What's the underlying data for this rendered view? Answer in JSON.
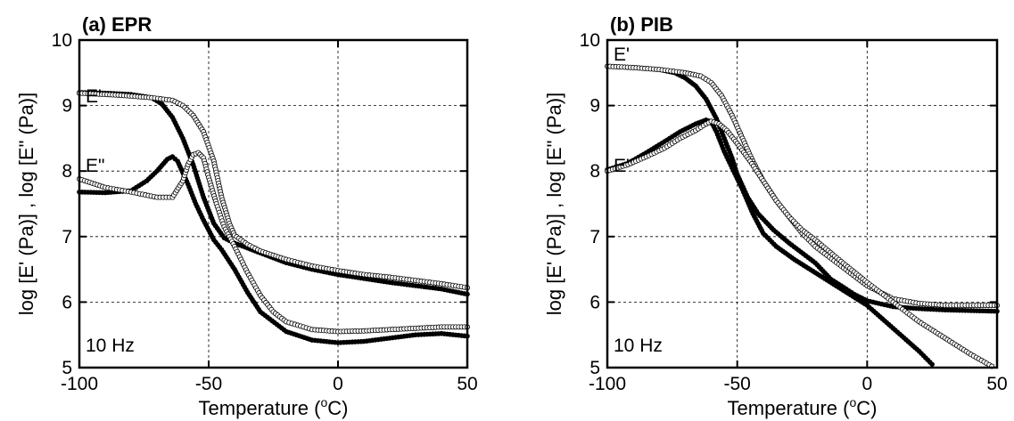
{
  "chart_data": [
    {
      "type": "scatter",
      "title": "(a) EPR",
      "xlabel": "Temperature (",
      "xlabel_degree": "o",
      "xlabel_unit": "C)",
      "ylabel": "log [E' (Pa)] , log [E\" (Pa)]",
      "xlim": [
        -100,
        50
      ],
      "ylim": [
        5,
        10
      ],
      "xticks": [
        -100,
        -50,
        0,
        50
      ],
      "yticks": [
        5,
        6,
        7,
        8,
        9,
        10
      ],
      "grid": "dashed",
      "annotations": [
        "E'",
        "E\"",
        "10 Hz"
      ],
      "series": [
        {
          "marker": "filled",
          "values": [
            [
              -100,
              9.2
            ],
            [
              -90,
              9.19
            ],
            [
              -80,
              9.17
            ],
            [
              -72,
              9.12
            ],
            [
              -68,
              9.02
            ],
            [
              -64,
              8.82
            ],
            [
              -60,
              8.5
            ],
            [
              -56,
              8.1
            ],
            [
              -52,
              7.6
            ],
            [
              -48,
              7.2
            ],
            [
              -44,
              6.98
            ],
            [
              -40,
              6.9
            ],
            [
              -30,
              6.75
            ],
            [
              -20,
              6.6
            ],
            [
              -10,
              6.5
            ],
            [
              0,
              6.42
            ],
            [
              10,
              6.36
            ],
            [
              20,
              6.3
            ],
            [
              30,
              6.25
            ],
            [
              40,
              6.2
            ],
            [
              50,
              6.12
            ]
          ]
        },
        {
          "marker": "open",
          "values": [
            [
              -100,
              9.19
            ],
            [
              -85,
              9.16
            ],
            [
              -72,
              9.12
            ],
            [
              -64,
              9.08
            ],
            [
              -60,
              9.0
            ],
            [
              -56,
              8.85
            ],
            [
              -52,
              8.6
            ],
            [
              -48,
              8.15
            ],
            [
              -45,
              7.6
            ],
            [
              -42,
              7.2
            ],
            [
              -40,
              7.02
            ],
            [
              -35,
              6.88
            ],
            [
              -30,
              6.78
            ],
            [
              -20,
              6.65
            ],
            [
              -10,
              6.55
            ],
            [
              0,
              6.48
            ],
            [
              10,
              6.42
            ],
            [
              20,
              6.38
            ],
            [
              30,
              6.33
            ],
            [
              40,
              6.28
            ],
            [
              50,
              6.22
            ]
          ]
        },
        {
          "marker": "filled",
          "values": [
            [
              -100,
              7.68
            ],
            [
              -90,
              7.67
            ],
            [
              -80,
              7.7
            ],
            [
              -74,
              7.85
            ],
            [
              -70,
              8.0
            ],
            [
              -66,
              8.18
            ],
            [
              -64,
              8.22
            ],
            [
              -62,
              8.15
            ],
            [
              -58,
              7.8
            ],
            [
              -55,
              7.5
            ],
            [
              -52,
              7.25
            ],
            [
              -48,
              6.95
            ],
            [
              -45,
              6.8
            ],
            [
              -40,
              6.5
            ],
            [
              -35,
              6.15
            ],
            [
              -30,
              5.85
            ],
            [
              -20,
              5.55
            ],
            [
              -10,
              5.42
            ],
            [
              0,
              5.38
            ],
            [
              10,
              5.4
            ],
            [
              20,
              5.45
            ],
            [
              30,
              5.5
            ],
            [
              40,
              5.52
            ],
            [
              50,
              5.48
            ]
          ]
        },
        {
          "marker": "open",
          "values": [
            [
              -100,
              7.88
            ],
            [
              -90,
              7.75
            ],
            [
              -80,
              7.68
            ],
            [
              -70,
              7.6
            ],
            [
              -64,
              7.6
            ],
            [
              -60,
              7.85
            ],
            [
              -58,
              8.1
            ],
            [
              -56,
              8.25
            ],
            [
              -54,
              8.28
            ],
            [
              -52,
              8.2
            ],
            [
              -50,
              7.9
            ],
            [
              -47,
              7.5
            ],
            [
              -44,
              7.15
            ],
            [
              -40,
              6.85
            ],
            [
              -35,
              6.45
            ],
            [
              -30,
              6.1
            ],
            [
              -25,
              5.85
            ],
            [
              -20,
              5.7
            ],
            [
              -10,
              5.58
            ],
            [
              0,
              5.55
            ],
            [
              10,
              5.56
            ],
            [
              20,
              5.58
            ],
            [
              30,
              5.6
            ],
            [
              40,
              5.62
            ],
            [
              50,
              5.62
            ]
          ]
        }
      ]
    },
    {
      "type": "scatter",
      "title": "(b) PIB",
      "xlabel": "Temperature (",
      "xlabel_degree": "o",
      "xlabel_unit": "C)",
      "ylabel": "log [E' (Pa)] , log [E\" (Pa)]",
      "xlim": [
        -100,
        50
      ],
      "ylim": [
        5,
        10
      ],
      "xticks": [
        -100,
        -50,
        0,
        50
      ],
      "yticks": [
        5,
        6,
        7,
        8,
        9,
        10
      ],
      "grid": "dashed",
      "annotations": [
        "E'",
        "E\"",
        "10 Hz"
      ],
      "series": [
        {
          "marker": "filled",
          "values": [
            [
              -100,
              9.6
            ],
            [
              -90,
              9.58
            ],
            [
              -80,
              9.55
            ],
            [
              -74,
              9.5
            ],
            [
              -70,
              9.42
            ],
            [
              -66,
              9.3
            ],
            [
              -62,
              9.1
            ],
            [
              -58,
              8.8
            ],
            [
              -55,
              8.5
            ],
            [
              -52,
              8.2
            ],
            [
              -50,
              7.95
            ],
            [
              -46,
              7.6
            ],
            [
              -42,
              7.35
            ],
            [
              -36,
              7.1
            ],
            [
              -30,
              6.9
            ],
            [
              -20,
              6.6
            ],
            [
              -14,
              6.35
            ],
            [
              -10,
              6.25
            ],
            [
              -5,
              6.12
            ],
            [
              0,
              6.02
            ],
            [
              10,
              5.93
            ],
            [
              20,
              5.9
            ],
            [
              30,
              5.88
            ],
            [
              40,
              5.87
            ],
            [
              50,
              5.86
            ]
          ]
        },
        {
          "marker": "open",
          "values": [
            [
              -100,
              9.6
            ],
            [
              -90,
              9.58
            ],
            [
              -80,
              9.55
            ],
            [
              -70,
              9.5
            ],
            [
              -64,
              9.45
            ],
            [
              -60,
              9.35
            ],
            [
              -56,
              9.15
            ],
            [
              -52,
              8.85
            ],
            [
              -48,
              8.5
            ],
            [
              -44,
              8.15
            ],
            [
              -40,
              7.85
            ],
            [
              -35,
              7.55
            ],
            [
              -30,
              7.3
            ],
            [
              -25,
              7.05
            ],
            [
              -20,
              6.85
            ],
            [
              -10,
              6.55
            ],
            [
              0,
              6.25
            ],
            [
              10,
              6.05
            ],
            [
              20,
              5.98
            ],
            [
              30,
              5.95
            ],
            [
              40,
              5.95
            ],
            [
              50,
              5.95
            ]
          ]
        },
        {
          "marker": "filled",
          "values": [
            [
              -100,
              8.02
            ],
            [
              -92,
              8.12
            ],
            [
              -85,
              8.28
            ],
            [
              -78,
              8.45
            ],
            [
              -72,
              8.6
            ],
            [
              -66,
              8.72
            ],
            [
              -62,
              8.78
            ],
            [
              -60,
              8.75
            ],
            [
              -58,
              8.6
            ],
            [
              -55,
              8.3
            ],
            [
              -52,
              8.05
            ],
            [
              -48,
              7.72
            ],
            [
              -44,
              7.35
            ],
            [
              -40,
              7.05
            ],
            [
              -35,
              6.85
            ],
            [
              -28,
              6.65
            ],
            [
              -20,
              6.45
            ],
            [
              -10,
              6.2
            ],
            [
              0,
              5.95
            ],
            [
              10,
              5.6
            ],
            [
              20,
              5.25
            ],
            [
              25,
              5.05
            ]
          ]
        },
        {
          "marker": "open",
          "values": [
            [
              -100,
              8.0
            ],
            [
              -92,
              8.1
            ],
            [
              -85,
              8.22
            ],
            [
              -78,
              8.35
            ],
            [
              -72,
              8.5
            ],
            [
              -66,
              8.62
            ],
            [
              -62,
              8.72
            ],
            [
              -60,
              8.76
            ],
            [
              -57,
              8.72
            ],
            [
              -54,
              8.62
            ],
            [
              -50,
              8.42
            ],
            [
              -45,
              8.15
            ],
            [
              -40,
              7.85
            ],
            [
              -35,
              7.55
            ],
            [
              -30,
              7.3
            ],
            [
              -25,
              7.1
            ],
            [
              -20,
              6.95
            ],
            [
              -10,
              6.62
            ],
            [
              0,
              6.3
            ],
            [
              10,
              6.0
            ],
            [
              20,
              5.7
            ],
            [
              30,
              5.45
            ],
            [
              40,
              5.2
            ],
            [
              48,
              5.02
            ]
          ]
        }
      ]
    }
  ]
}
